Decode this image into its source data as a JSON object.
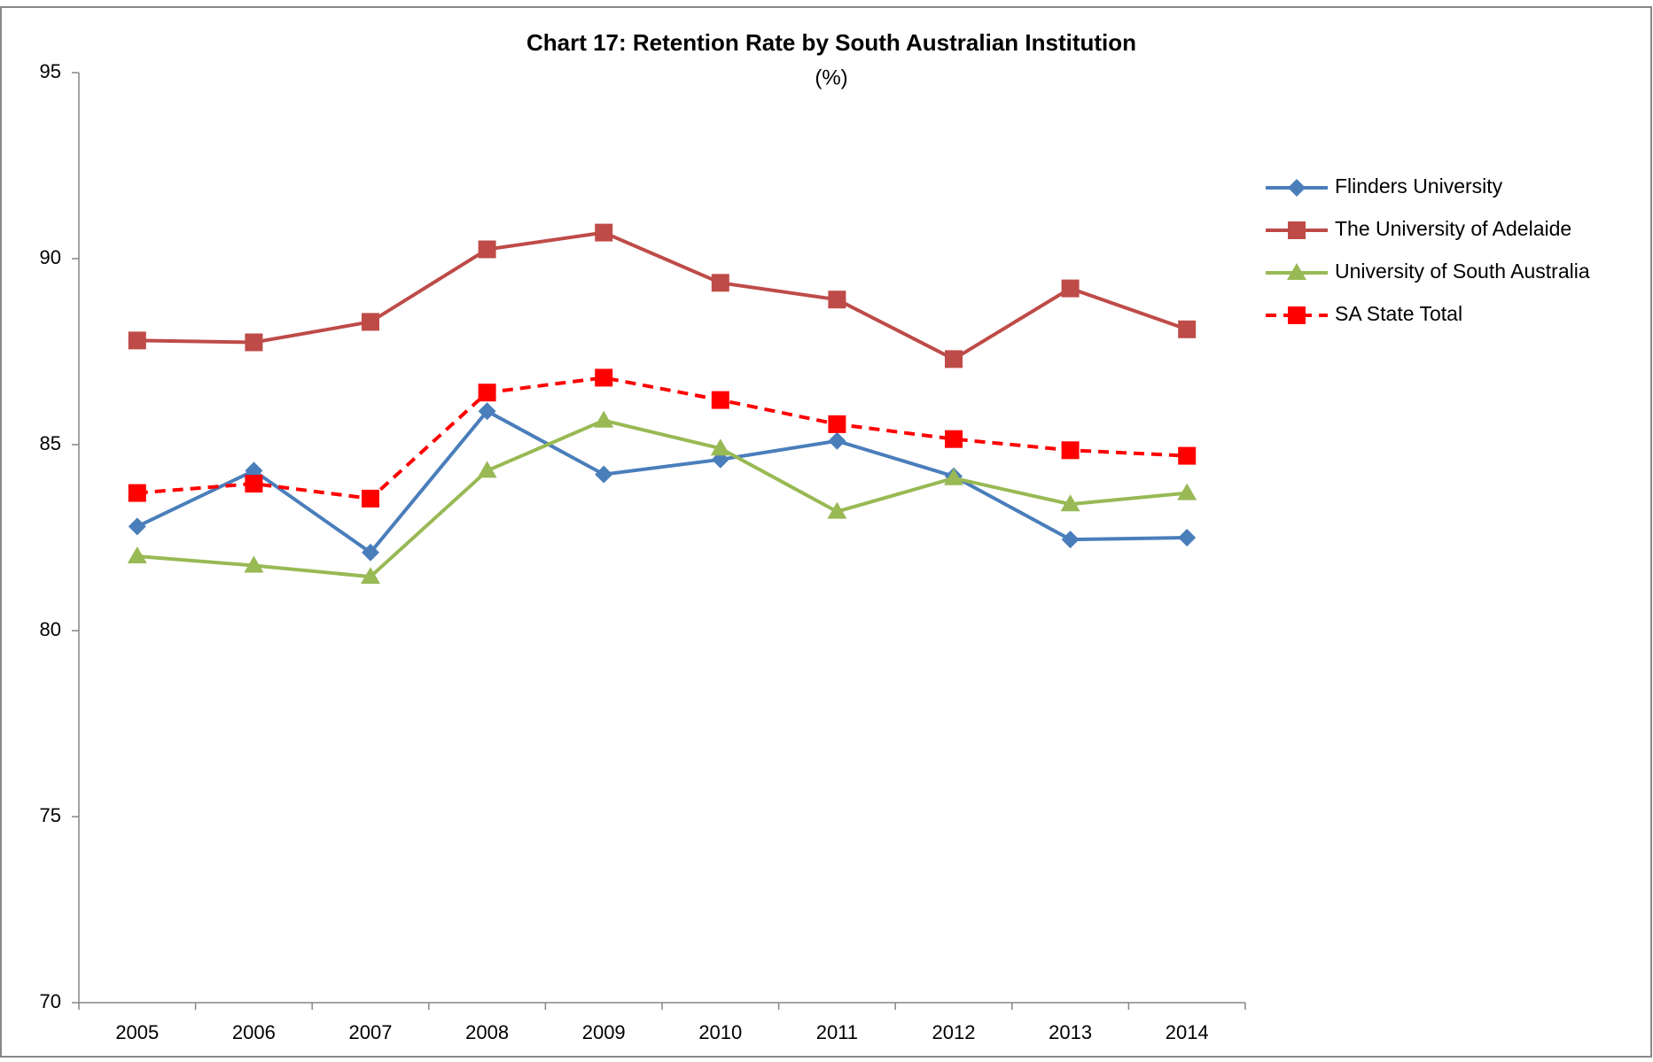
{
  "chart_data": {
    "type": "line",
    "title": "Chart 17: Retention Rate by South Australian Institution",
    "subtitle": "(%)",
    "categories": [
      "2005",
      "2006",
      "2007",
      "2008",
      "2009",
      "2010",
      "2011",
      "2012",
      "2013",
      "2014"
    ],
    "series": [
      {
        "name": "Flinders University",
        "color": "#4a7ebb",
        "marker": "diamond",
        "dashed": false,
        "values": [
          82.8,
          84.3,
          82.1,
          85.9,
          84.2,
          84.6,
          85.1,
          84.15,
          82.45,
          82.5
        ]
      },
      {
        "name": "The University of Adelaide",
        "color": "#be4b48",
        "marker": "square",
        "dashed": false,
        "values": [
          87.8,
          87.75,
          88.3,
          90.25,
          90.7,
          89.35,
          88.9,
          87.3,
          89.2,
          88.1
        ]
      },
      {
        "name": "University of South Australia",
        "color": "#98b954",
        "marker": "triangle",
        "dashed": false,
        "values": [
          82.0,
          81.75,
          81.45,
          84.3,
          85.65,
          84.9,
          83.2,
          84.1,
          83.4,
          83.7
        ]
      },
      {
        "name": "SA State Total",
        "color": "#ff0000",
        "marker": "square",
        "dashed": true,
        "values": [
          83.7,
          83.95,
          83.55,
          86.4,
          86.8,
          86.2,
          85.55,
          85.15,
          84.85,
          84.7
        ]
      }
    ],
    "ylim": [
      70,
      95
    ],
    "yticks": [
      70,
      75,
      80,
      85,
      90,
      95
    ],
    "grid": false,
    "legend": "right"
  }
}
